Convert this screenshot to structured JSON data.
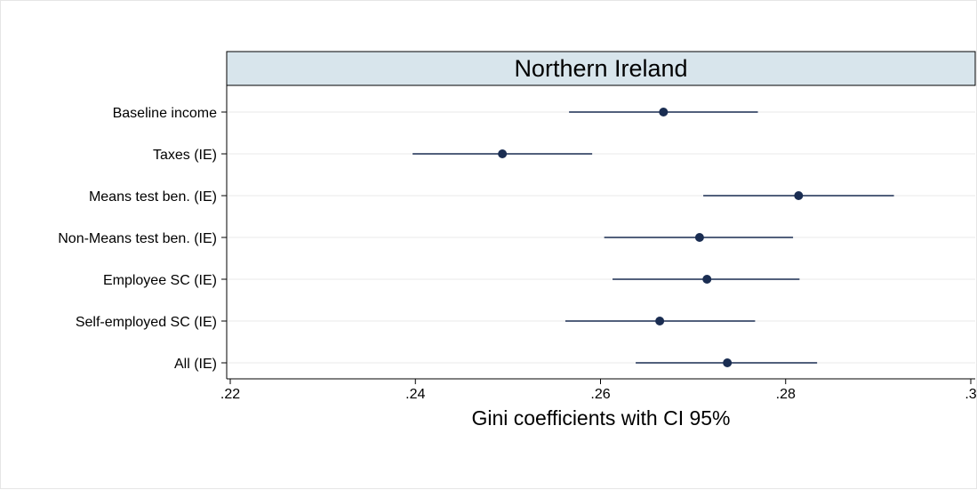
{
  "chart_data": {
    "type": "scatter",
    "subtype": "dot-and-whisker",
    "title": "Northern Ireland",
    "xlabel": "Gini coefficients with CI 95%",
    "ylabel": "",
    "xlim": [
      0.22,
      0.3
    ],
    "xticks": [
      0.22,
      0.24,
      0.26,
      0.28,
      0.3
    ],
    "xtick_labels": [
      ".22",
      ".24",
      ".26",
      ".28",
      ".3"
    ],
    "grid": "horizontal",
    "legend": "none",
    "categories": [
      "Baseline income",
      "Taxes (IE)",
      "Means test ben. (IE)",
      "Non-Means test ben. (IE)",
      "Employee SC (IE)",
      "Self-employed SC (IE)",
      "All (IE)"
    ],
    "values": [
      0.2668,
      0.2494,
      0.2814,
      0.2707,
      0.2715,
      0.2664,
      0.2737
    ],
    "ci_low": [
      0.2566,
      0.2397,
      0.2711,
      0.2604,
      0.2613,
      0.2562,
      0.2638
    ],
    "ci_high": [
      0.277,
      0.2591,
      0.2917,
      0.2808,
      0.2815,
      0.2767,
      0.2834
    ]
  },
  "colors": {
    "marker": "#1a2d52",
    "whisker": "#1a2d52",
    "title_band": "#d8e5ec",
    "grid": "#eeeeee",
    "axis": "#000000"
  }
}
